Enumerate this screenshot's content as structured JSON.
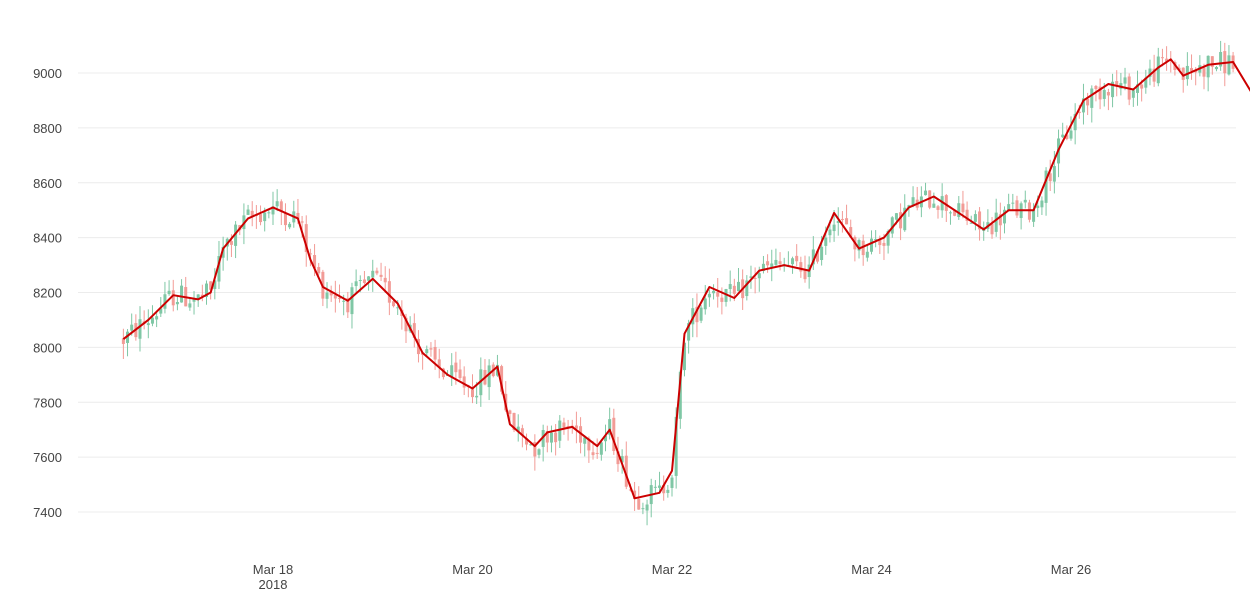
{
  "chart_data": {
    "type": "candlestick",
    "title": "",
    "xlabel": "",
    "ylabel": "",
    "ylim": [
      7300,
      9170
    ],
    "xlim_days": [
      "Mar 16 12:00",
      "Mar 27 23:59"
    ],
    "grid": true,
    "legend": "none",
    "y_ticks": [
      7400,
      7600,
      7800,
      8000,
      8200,
      8400,
      8600,
      8800,
      9000
    ],
    "y_tick_labels": [
      "7400",
      "7600",
      "7800",
      "8000",
      "8200",
      "8400",
      "8600",
      "8800",
      "9000"
    ],
    "x_ticks": [
      {
        "label": "Mar 18",
        "sublabel": "2018",
        "day": 18
      },
      {
        "label": "Mar 20",
        "sublabel": "",
        "day": 20
      },
      {
        "label": "Mar 22",
        "sublabel": "",
        "day": 22
      },
      {
        "label": "Mar 24",
        "sublabel": "",
        "day": 24
      },
      {
        "label": "Mar 26",
        "sublabel": "",
        "day": 26
      }
    ],
    "candle_interval_hours": 2,
    "candle_start": "Mar 16 12:00",
    "candle_stride": 1,
    "candles": [],
    "moving_average": {
      "color": "#cc0000",
      "points": [
        [
          "Mar 16 12:00",
          8030
        ],
        [
          "Mar 16 18:00",
          8100
        ],
        [
          "Mar 17 00:00",
          8190
        ],
        [
          "Mar 17 06:00",
          8175
        ],
        [
          "Mar 17 09:00",
          8200
        ],
        [
          "Mar 17 12:00",
          8360
        ],
        [
          "Mar 17 18:00",
          8470
        ],
        [
          "Mar 18 00:00",
          8510
        ],
        [
          "Mar 18 06:00",
          8470
        ],
        [
          "Mar 18 09:00",
          8320
        ],
        [
          "Mar 18 12:00",
          8220
        ],
        [
          "Mar 18 18:00",
          8170
        ],
        [
          "Mar 19 00:00",
          8250
        ],
        [
          "Mar 19 06:00",
          8160
        ],
        [
          "Mar 19 12:00",
          7980
        ],
        [
          "Mar 19 18:00",
          7900
        ],
        [
          "Mar 20 00:00",
          7850
        ],
        [
          "Mar 20 06:00",
          7930
        ],
        [
          "Mar 20 09:00",
          7720
        ],
        [
          "Mar 20 15:00",
          7640
        ],
        [
          "Mar 20 18:00",
          7690
        ],
        [
          "Mar 21 00:00",
          7710
        ],
        [
          "Mar 21 06:00",
          7640
        ],
        [
          "Mar 21 09:00",
          7700
        ],
        [
          "Mar 21 15:00",
          7450
        ],
        [
          "Mar 21 21:00",
          7470
        ],
        [
          "Mar 22 00:00",
          7550
        ],
        [
          "Mar 22 03:00",
          8050
        ],
        [
          "Mar 22 09:00",
          8220
        ],
        [
          "Mar 22 15:00",
          8180
        ],
        [
          "Mar 22 21:00",
          8280
        ],
        [
          "Mar 23 03:00",
          8300
        ],
        [
          "Mar 23 09:00",
          8280
        ],
        [
          "Mar 23 15:00",
          8490
        ],
        [
          "Mar 23 21:00",
          8360
        ],
        [
          "Mar 24 03:00",
          8400
        ],
        [
          "Mar 24 09:00",
          8510
        ],
        [
          "Mar 24 15:00",
          8550
        ],
        [
          "Mar 24 21:00",
          8490
        ],
        [
          "Mar 25 03:00",
          8430
        ],
        [
          "Mar 25 09:00",
          8500
        ],
        [
          "Mar 25 15:00",
          8500
        ],
        [
          "Mar 25 21:00",
          8720
        ],
        [
          "Mar 26 03:00",
          8900
        ],
        [
          "Mar 26 09:00",
          8960
        ],
        [
          "Mar 26 15:00",
          8940
        ],
        [
          "Mar 26 21:00",
          9020
        ],
        [
          "Mar 27 00:00",
          9050
        ],
        [
          "Mar 27 03:00",
          8990
        ],
        [
          "Mar 27 09:00",
          9030
        ],
        [
          "Mar 27 15:00",
          9040
        ],
        [
          "Mar 27 21:00",
          8890
        ]
      ]
    }
  }
}
